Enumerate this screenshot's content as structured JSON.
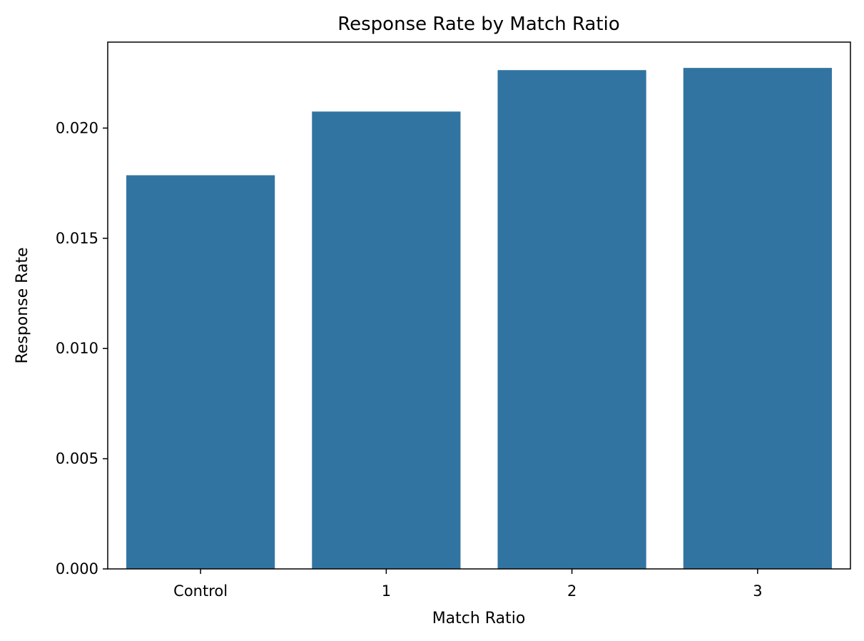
{
  "chart_data": {
    "type": "bar",
    "title": "Response Rate by Match Ratio",
    "xlabel": "Match Ratio",
    "ylabel": "Response Rate",
    "categories": [
      "Control",
      "1",
      "2",
      "3"
    ],
    "values": [
      0.01786,
      0.02075,
      0.02263,
      0.02273
    ],
    "ylim": [
      0,
      0.0239
    ],
    "yticks": [
      0.0,
      0.005,
      0.01,
      0.015,
      0.02
    ],
    "ytick_labels": [
      "0.000",
      "0.005",
      "0.010",
      "0.015",
      "0.020"
    ],
    "bar_color": "#3274a1",
    "grid": false,
    "legend": "none"
  }
}
